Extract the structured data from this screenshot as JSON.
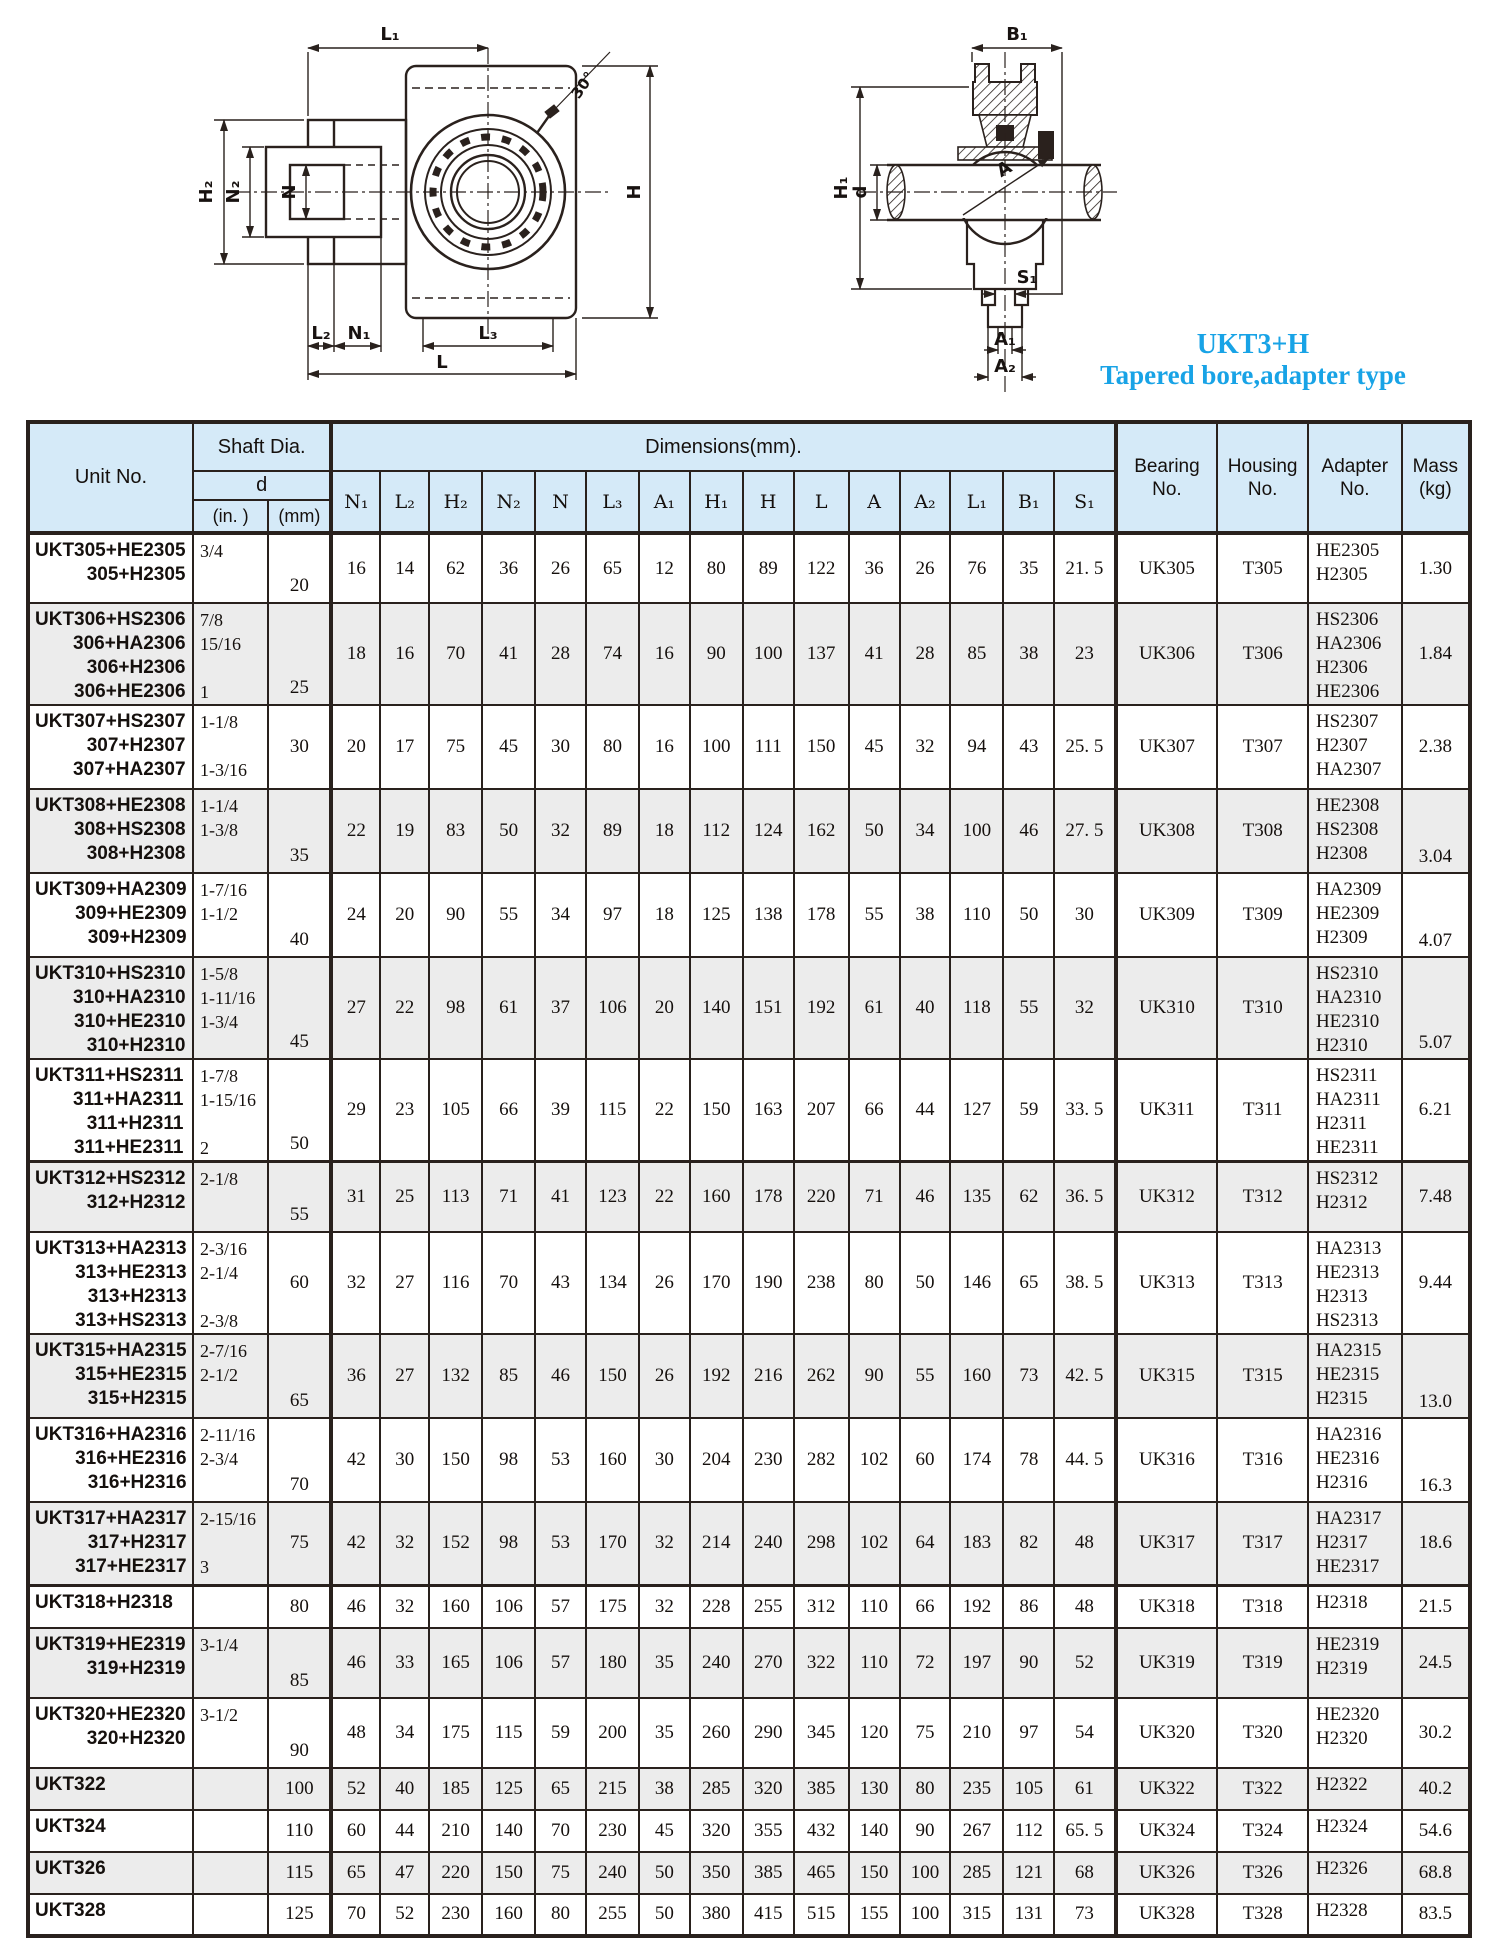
{
  "caption": {
    "line1": "UKT3+H",
    "line2": "Tapered bore,adapter type",
    "color": "#18a3e6"
  },
  "drawing_labels": {
    "front": {
      "l1": "L₁",
      "h2": "H₂",
      "n2": "N₂",
      "n": "N",
      "h": "H",
      "angle": "30°",
      "l2": "L₂",
      "n1": "N₁",
      "l3": "L₃",
      "l": "L"
    },
    "side": {
      "b1": "B₁",
      "h1": "H₁",
      "d": "d",
      "a": "A",
      "s1": "S₁",
      "a1": "A₁",
      "a2": "A₂"
    }
  },
  "table": {
    "header": {
      "unit_no": "Unit No.",
      "shaft_dia": "Shaft Dia.",
      "d": "d",
      "in_label": "(in. )",
      "mm_label": "(mm)",
      "dimensions": "Dimensions(mm).",
      "dim_cols": [
        "N₁",
        "L₂",
        "H₂",
        "N₂",
        "N",
        "L₃",
        "A₁",
        "H₁",
        "H",
        "L",
        "A",
        "A₂",
        "L₁",
        "B₁",
        "S₁"
      ],
      "bearing_no": [
        "Bearing",
        "No."
      ],
      "housing_no": [
        "Housing",
        "No."
      ],
      "adapter_no": [
        "Adapter",
        "No."
      ],
      "mass": [
        "Mass",
        "(kg)"
      ]
    },
    "rows": [
      {
        "unit_lines": [
          "UKT305+HE2305",
          "305+H2305"
        ],
        "in_lines": [
          "3/4"
        ],
        "mm": "20",
        "mm_low": true,
        "dims": [
          "16",
          "14",
          "62",
          "36",
          "26",
          "65",
          "12",
          "80",
          "89",
          "122",
          "36",
          "26",
          "76",
          "35",
          "21. 5"
        ],
        "bearing": "UK305",
        "housing": "T305",
        "adapter_lines": [
          "HE2305",
          "H2305"
        ],
        "mass": "1.30"
      },
      {
        "unit_lines": [
          "UKT306+HS2306",
          "306+HA2306",
          "306+H2306",
          "306+HE2306"
        ],
        "in_lines": [
          "7/8",
          "15/16",
          "",
          "1"
        ],
        "mm": "25",
        "mm_low": true,
        "dims": [
          "18",
          "16",
          "70",
          "41",
          "28",
          "74",
          "16",
          "90",
          "100",
          "137",
          "41",
          "28",
          "85",
          "38",
          "23"
        ],
        "bearing": "UK306",
        "housing": "T306",
        "adapter_lines": [
          "HS2306",
          "HA2306",
          "H2306",
          "HE2306"
        ],
        "mass": "1.84"
      },
      {
        "unit_lines": [
          "UKT307+HS2307",
          "307+H2307",
          "307+HA2307"
        ],
        "in_lines": [
          "1-1/8",
          "",
          "1-3/16"
        ],
        "mm": "30",
        "dims": [
          "20",
          "17",
          "75",
          "45",
          "30",
          "80",
          "16",
          "100",
          "111",
          "150",
          "45",
          "32",
          "94",
          "43",
          "25. 5"
        ],
        "bearing": "UK307",
        "housing": "T307",
        "adapter_lines": [
          "HS2307",
          "H2307",
          "HA2307"
        ],
        "mass": "2.38"
      },
      {
        "unit_lines": [
          "UKT308+HE2308",
          "308+HS2308",
          "308+H2308"
        ],
        "in_lines": [
          "1-1/4",
          "1-3/8",
          ""
        ],
        "mm": "35",
        "mm_low": true,
        "dims": [
          "22",
          "19",
          "83",
          "50",
          "32",
          "89",
          "18",
          "112",
          "124",
          "162",
          "50",
          "34",
          "100",
          "46",
          "27. 5"
        ],
        "bearing": "UK308",
        "housing": "T308",
        "adapter_lines": [
          "HE2308",
          "HS2308",
          "H2308"
        ],
        "mass": "3.04",
        "mass_low": true
      },
      {
        "unit_lines": [
          "UKT309+HA2309",
          "309+HE2309",
          "309+H2309"
        ],
        "in_lines": [
          "1-7/16",
          "1-1/2",
          ""
        ],
        "mm": "40",
        "mm_low": true,
        "dims": [
          "24",
          "20",
          "90",
          "55",
          "34",
          "97",
          "18",
          "125",
          "138",
          "178",
          "55",
          "38",
          "110",
          "50",
          "30"
        ],
        "bearing": "UK309",
        "housing": "T309",
        "adapter_lines": [
          "HA2309",
          "HE2309",
          "H2309"
        ],
        "mass": "4.07",
        "mass_low": true
      },
      {
        "unit_lines": [
          "UKT310+HS2310",
          "310+HA2310",
          "310+HE2310",
          "310+H2310"
        ],
        "in_lines": [
          "1-5/8",
          "1-11/16",
          "1-3/4",
          ""
        ],
        "mm": "45",
        "mm_low": true,
        "dims": [
          "27",
          "22",
          "98",
          "61",
          "37",
          "106",
          "20",
          "140",
          "151",
          "192",
          "61",
          "40",
          "118",
          "55",
          "32"
        ],
        "bearing": "UK310",
        "housing": "T310",
        "adapter_lines": [
          "HS2310",
          "HA2310",
          "HE2310",
          "H2310"
        ],
        "mass": "5.07",
        "mass_low": true
      },
      {
        "unit_lines": [
          "UKT311+HS2311",
          "311+HA2311",
          "311+H2311",
          "311+HE2311"
        ],
        "in_lines": [
          "1-7/8",
          "1-15/16",
          "",
          "2"
        ],
        "mm": "50",
        "mm_low": true,
        "dims": [
          "29",
          "23",
          "105",
          "66",
          "39",
          "115",
          "22",
          "150",
          "163",
          "207",
          "66",
          "44",
          "127",
          "59",
          "33. 5"
        ],
        "bearing": "UK311",
        "housing": "T311",
        "adapter_lines": [
          "HS2311",
          "HA2311",
          "H2311",
          "HE2311"
        ],
        "mass": "6.21"
      },
      {
        "unit_lines": [
          "UKT312+HS2312",
          "312+H2312"
        ],
        "in_lines": [
          "2-1/8"
        ],
        "mm": "55",
        "mm_low": true,
        "dims": [
          "31",
          "25",
          "113",
          "71",
          "41",
          "123",
          "22",
          "160",
          "178",
          "220",
          "71",
          "46",
          "135",
          "62",
          "36. 5"
        ],
        "bearing": "UK312",
        "housing": "T312",
        "adapter_lines": [
          "HS2312",
          "H2312"
        ],
        "mass": "7.48"
      },
      {
        "unit_lines": [
          "UKT313+HA2313",
          "313+HE2313",
          "313+H2313",
          "313+HS2313"
        ],
        "in_lines": [
          "2-3/16",
          "2-1/4",
          "",
          "2-3/8"
        ],
        "mm": "60",
        "dims": [
          "32",
          "27",
          "116",
          "70",
          "43",
          "134",
          "26",
          "170",
          "190",
          "238",
          "80",
          "50",
          "146",
          "65",
          "38. 5"
        ],
        "bearing": "UK313",
        "housing": "T313",
        "adapter_lines": [
          "HA2313",
          "HE2313",
          "H2313",
          "HS2313"
        ],
        "mass": "9.44"
      },
      {
        "unit_lines": [
          "UKT315+HA2315",
          "315+HE2315",
          "315+H2315"
        ],
        "in_lines": [
          "2-7/16",
          "2-1/2",
          ""
        ],
        "mm": "65",
        "mm_low": true,
        "dims": [
          "36",
          "27",
          "132",
          "85",
          "46",
          "150",
          "26",
          "192",
          "216",
          "262",
          "90",
          "55",
          "160",
          "73",
          "42. 5"
        ],
        "bearing": "UK315",
        "housing": "T315",
        "adapter_lines": [
          "HA2315",
          "HE2315",
          "H2315"
        ],
        "mass": "13.0",
        "mass_low": true
      },
      {
        "unit_lines": [
          "UKT316+HA2316",
          "316+HE2316",
          "316+H2316"
        ],
        "in_lines": [
          "2-11/16",
          "2-3/4",
          ""
        ],
        "mm": "70",
        "mm_low": true,
        "dims": [
          "42",
          "30",
          "150",
          "98",
          "53",
          "160",
          "30",
          "204",
          "230",
          "282",
          "102",
          "60",
          "174",
          "78",
          "44. 5"
        ],
        "bearing": "UK316",
        "housing": "T316",
        "adapter_lines": [
          "HA2316",
          "HE2316",
          "H2316"
        ],
        "mass": "16.3",
        "mass_low": true
      },
      {
        "unit_lines": [
          "UKT317+HA2317",
          "317+H2317",
          "317+HE2317"
        ],
        "in_lines": [
          "2-15/16",
          "",
          "3"
        ],
        "mm": "75",
        "dims": [
          "42",
          "32",
          "152",
          "98",
          "53",
          "170",
          "32",
          "214",
          "240",
          "298",
          "102",
          "64",
          "183",
          "82",
          "48"
        ],
        "bearing": "UK317",
        "housing": "T317",
        "adapter_lines": [
          "HA2317",
          "H2317",
          "HE2317"
        ],
        "mass": "18.6"
      },
      {
        "unit_lines": [
          "UKT318+H2318"
        ],
        "in_lines": [],
        "mm": "80",
        "dims": [
          "46",
          "32",
          "160",
          "106",
          "57",
          "175",
          "32",
          "228",
          "255",
          "312",
          "110",
          "66",
          "192",
          "86",
          "48"
        ],
        "bearing": "UK318",
        "housing": "T318",
        "adapter_lines": [
          "H2318"
        ],
        "mass": "21.5"
      },
      {
        "unit_lines": [
          "UKT319+HE2319",
          "319+H2319"
        ],
        "in_lines": [
          "3-1/4"
        ],
        "mm": "85",
        "mm_low": true,
        "dims": [
          "46",
          "33",
          "165",
          "106",
          "57",
          "180",
          "35",
          "240",
          "270",
          "322",
          "110",
          "72",
          "197",
          "90",
          "52"
        ],
        "bearing": "UK319",
        "housing": "T319",
        "adapter_lines": [
          "HE2319",
          "H2319"
        ],
        "mass": "24.5"
      },
      {
        "unit_lines": [
          "UKT320+HE2320",
          "320+H2320"
        ],
        "in_lines": [
          "3-1/2"
        ],
        "mm": "90",
        "mm_low": true,
        "dims": [
          "48",
          "34",
          "175",
          "115",
          "59",
          "200",
          "35",
          "260",
          "290",
          "345",
          "120",
          "75",
          "210",
          "97",
          "54"
        ],
        "bearing": "UK320",
        "housing": "T320",
        "adapter_lines": [
          "HE2320",
          "H2320"
        ],
        "mass": "30.2"
      },
      {
        "unit_lines": [
          "UKT322"
        ],
        "in_lines": [],
        "mm": "100",
        "dims": [
          "52",
          "40",
          "185",
          "125",
          "65",
          "215",
          "38",
          "285",
          "320",
          "385",
          "130",
          "80",
          "235",
          "105",
          "61"
        ],
        "bearing": "UK322",
        "housing": "T322",
        "adapter_lines": [
          "H2322"
        ],
        "mass": "40.2"
      },
      {
        "unit_lines": [
          "UKT324"
        ],
        "in_lines": [],
        "mm": "110",
        "dims": [
          "60",
          "44",
          "210",
          "140",
          "70",
          "230",
          "45",
          "320",
          "355",
          "432",
          "140",
          "90",
          "267",
          "112",
          "65. 5"
        ],
        "bearing": "UK324",
        "housing": "T324",
        "adapter_lines": [
          "H2324"
        ],
        "mass": "54.6"
      },
      {
        "unit_lines": [
          "UKT326"
        ],
        "in_lines": [],
        "mm": "115",
        "dims": [
          "65",
          "47",
          "220",
          "150",
          "75",
          "240",
          "50",
          "350",
          "385",
          "465",
          "150",
          "100",
          "285",
          "121",
          "68"
        ],
        "bearing": "UK326",
        "housing": "T326",
        "adapter_lines": [
          "H2326"
        ],
        "mass": "68.8"
      },
      {
        "unit_lines": [
          "UKT328"
        ],
        "in_lines": [],
        "mm": "125",
        "dims": [
          "70",
          "52",
          "230",
          "160",
          "80",
          "255",
          "50",
          "380",
          "415",
          "515",
          "155",
          "100",
          "315",
          "131",
          "73"
        ],
        "bearing": "UK328",
        "housing": "T328",
        "adapter_lines": [
          "H2328"
        ],
        "mass": "83.5"
      }
    ]
  }
}
